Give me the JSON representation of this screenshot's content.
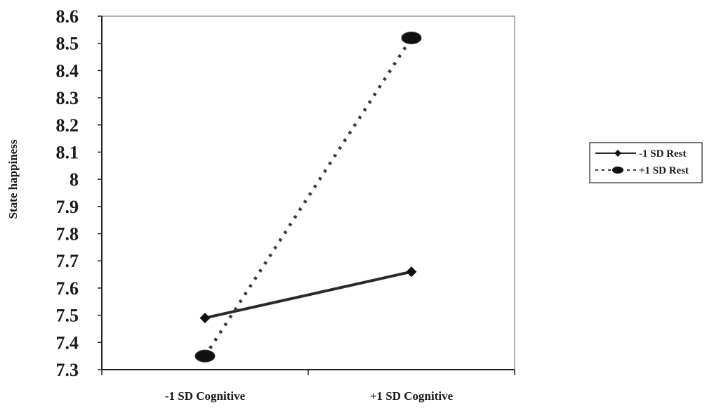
{
  "chart_data": {
    "type": "line",
    "title": "",
    "xlabel": "",
    "ylabel": "State happiness",
    "categories": [
      "-1 SD Cognitive",
      "+1 SD Cognitive"
    ],
    "y_ticks": [
      "7.3",
      "7.4",
      "7.5",
      "7.6",
      "7.7",
      "7.8",
      "7.9",
      "8",
      "8.1",
      "8.2",
      "8.3",
      "8.4",
      "8.5",
      "8.6"
    ],
    "ylim": [
      7.3,
      8.6
    ],
    "grid": false,
    "legend_position": "right",
    "series": [
      {
        "name": "-1 SD Rest",
        "values": [
          7.49,
          7.66
        ],
        "line_style": "solid",
        "marker": "diamond",
        "color": "#2a2a2a"
      },
      {
        "name": "+1 SD Rest",
        "values": [
          7.35,
          8.52
        ],
        "line_style": "dotted",
        "marker": "ellipse",
        "color": "#3a3a3a"
      }
    ]
  }
}
